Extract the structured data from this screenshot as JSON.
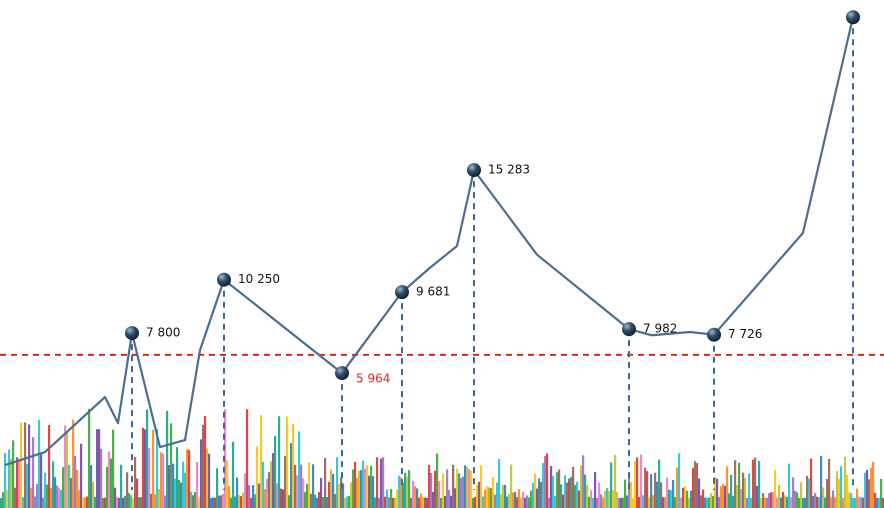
{
  "chart_data": {
    "type": "line",
    "x": [
      0.5,
      4.5,
      10.5,
      11.8,
      13.2,
      16,
      18.5,
      20,
      22.4,
      34.2,
      40.2,
      43,
      45.7,
      47.4,
      53.7,
      62.9,
      65.2,
      69,
      71.4,
      80.3,
      85.3
    ],
    "series": [
      {
        "color": "#4a6f91",
        "values": [
          1741,
          2338,
          4862,
          3669,
          7800,
          2567,
          2889,
          7020,
          10250,
          5964,
          9681,
          10800,
          11800,
          15283,
          11400,
          7982,
          7700,
          7850,
          7726,
          12400,
          22300
        ],
        "value_labels": [
          null,
          null,
          null,
          null,
          "7 800",
          null,
          null,
          null,
          "10 250",
          "5 964",
          "9 681",
          null,
          null,
          "15 283",
          null,
          "7 982",
          null,
          null,
          "7 726",
          null,
          null
        ]
      }
    ],
    "xlim": [
      0,
      88.4
    ],
    "ylim": [
      0,
      23000
    ],
    "threshold": 6800,
    "threshold_color": "#d9281c"
  }
}
